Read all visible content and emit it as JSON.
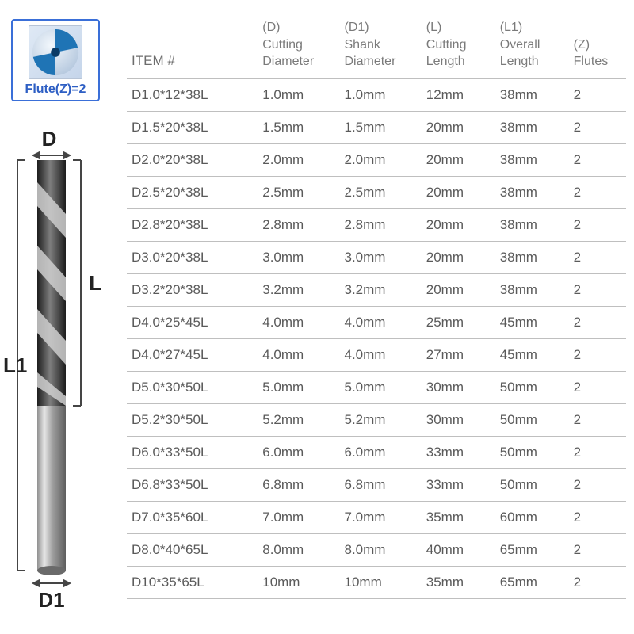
{
  "flute_box": {
    "label": "Flute(Z)=2",
    "icon_bg_start": "#dfe9f5",
    "icon_bg_end": "#c5d5ea",
    "border_color": "#3a6fd8",
    "text_color": "#2e5fc4",
    "blade_color": "#1f74b5",
    "core_color": "#0b3b66"
  },
  "diagram": {
    "labels": {
      "D": "D",
      "L": "L",
      "L1": "L1",
      "D1": "D1"
    },
    "label_fontsize": 26,
    "label_color": "#222222",
    "bracket_color": "#454545",
    "drill_flute_dark": "#2c2c2c",
    "drill_flute_light": "#7d7d7d",
    "drill_shank_light": "#e3e3e3",
    "drill_shank_mid": "#9d9d9d",
    "drill_shank_dark": "#6f6f6f"
  },
  "table": {
    "header_color": "#7a7a7a",
    "row_text_color": "#5a5a5a",
    "border_color": "#bfbfbf",
    "font_size": 17,
    "columns": [
      {
        "code": "",
        "label": "ITEM #"
      },
      {
        "code": "(D)",
        "label": "Cutting Diameter"
      },
      {
        "code": "(D1)",
        "label": "Shank Diameter"
      },
      {
        "code": "(L)",
        "label": "Cutting Length"
      },
      {
        "code": "(L1)",
        "label": "Overall Length"
      },
      {
        "code": "(Z)",
        "label": "Flutes"
      }
    ],
    "rows": [
      [
        "D1.0*12*38L",
        "1.0mm",
        "1.0mm",
        "12mm",
        "38mm",
        "2"
      ],
      [
        "D1.5*20*38L",
        "1.5mm",
        "1.5mm",
        "20mm",
        "38mm",
        "2"
      ],
      [
        "D2.0*20*38L",
        "2.0mm",
        "2.0mm",
        "20mm",
        "38mm",
        "2"
      ],
      [
        "D2.5*20*38L",
        "2.5mm",
        "2.5mm",
        "20mm",
        "38mm",
        "2"
      ],
      [
        "D2.8*20*38L",
        "2.8mm",
        "2.8mm",
        "20mm",
        "38mm",
        "2"
      ],
      [
        "D3.0*20*38L",
        "3.0mm",
        "3.0mm",
        "20mm",
        "38mm",
        "2"
      ],
      [
        "D3.2*20*38L",
        "3.2mm",
        "3.2mm",
        "20mm",
        "38mm",
        "2"
      ],
      [
        "D4.0*25*45L",
        "4.0mm",
        "4.0mm",
        "25mm",
        "45mm",
        "2"
      ],
      [
        "D4.0*27*45L",
        "4.0mm",
        "4.0mm",
        "27mm",
        "45mm",
        "2"
      ],
      [
        "D5.0*30*50L",
        "5.0mm",
        "5.0mm",
        "30mm",
        "50mm",
        "2"
      ],
      [
        "D5.2*30*50L",
        "5.2mm",
        "5.2mm",
        "30mm",
        "50mm",
        "2"
      ],
      [
        "D6.0*33*50L",
        "6.0mm",
        "6.0mm",
        "33mm",
        "50mm",
        "2"
      ],
      [
        "D6.8*33*50L",
        "6.8mm",
        "6.8mm",
        "33mm",
        "50mm",
        "2"
      ],
      [
        "D7.0*35*60L",
        "7.0mm",
        "7.0mm",
        "35mm",
        "60mm",
        "2"
      ],
      [
        "D8.0*40*65L",
        "8.0mm",
        "8.0mm",
        "40mm",
        "65mm",
        "2"
      ],
      [
        "D10*35*65L",
        "10mm",
        "10mm",
        "35mm",
        "65mm",
        "2"
      ]
    ]
  }
}
